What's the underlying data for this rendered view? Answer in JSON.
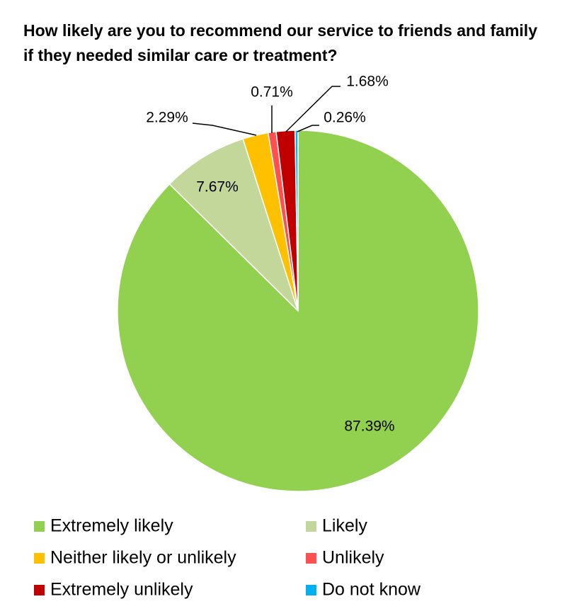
{
  "chart_data": {
    "type": "pie",
    "title": "How likely are you to recommend our service to friends and family if they needed similar care or treatment?",
    "categories": [
      "Extremely likely",
      "Likely",
      "Neither likely or unlikely",
      "Unlikely",
      "Extremely unlikely",
      "Do not know"
    ],
    "values": [
      87.39,
      7.67,
      2.29,
      0.71,
      1.68,
      0.26
    ],
    "value_labels": [
      "87.39%",
      "7.67%",
      "2.29%",
      "0.71%",
      "1.68%",
      "0.26%"
    ],
    "colors": [
      "#92d050",
      "#c4d79b",
      "#ffc000",
      "#ff4f4f",
      "#c00000",
      "#00b0f0"
    ]
  }
}
